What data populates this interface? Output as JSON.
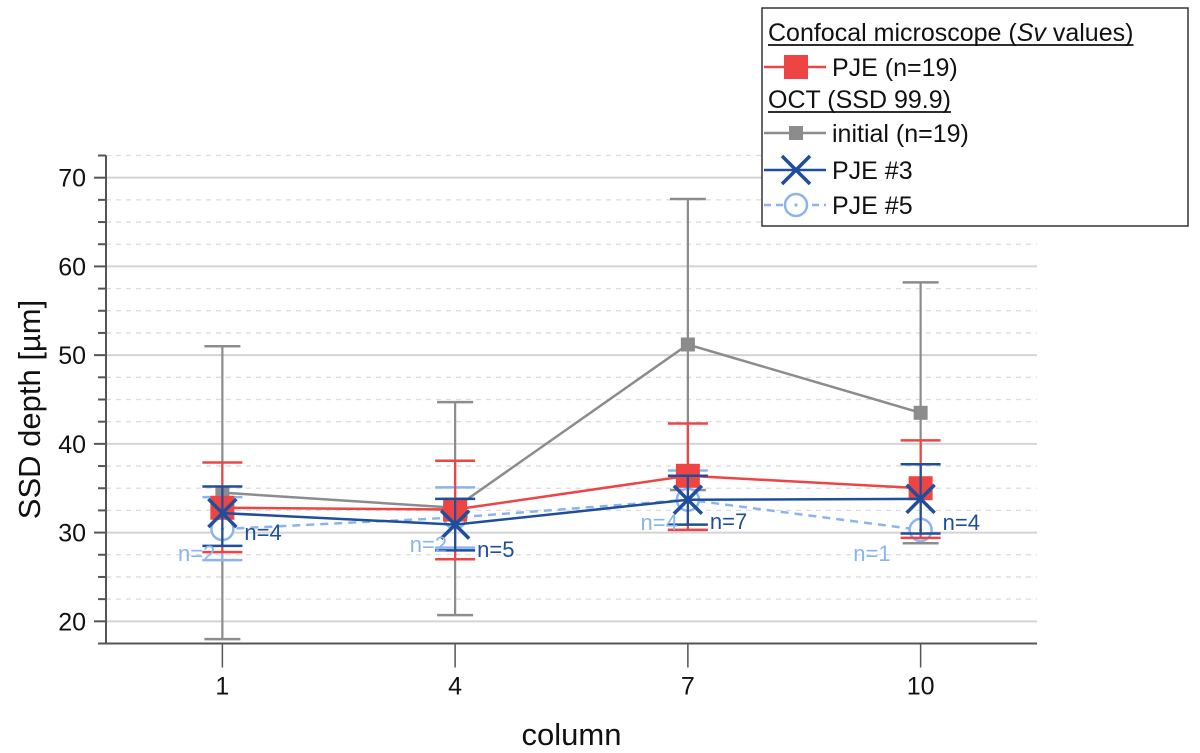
{
  "chart_data": {
    "type": "line",
    "title": "",
    "xlabel": "column",
    "ylabel": "SSD depth [µm]",
    "x": [
      1,
      4,
      7,
      10
    ],
    "x_tick_labels": [
      "1",
      "4",
      "7",
      "10"
    ],
    "xlim": [
      -0.5,
      11.5
    ],
    "ylim": [
      17.5,
      72.5
    ],
    "y_ticks": [
      20,
      30,
      40,
      50,
      60,
      70
    ],
    "y_tick_labels": [
      "20",
      "30",
      "40",
      "50",
      "60",
      "70"
    ],
    "y_minor_step": 2.5,
    "grid": "major solid, minor dashed (horizontal)",
    "legend_position": "top-right",
    "legend": [
      {
        "type": "header",
        "label_parts": [
          "Confocal microscope (",
          "Sv",
          " values)"
        ]
      },
      {
        "type": "series",
        "series_index": 0,
        "label": "PJE (n=19)"
      },
      {
        "type": "header",
        "label_parts": [
          "OCT (SSD 99.9)",
          "",
          ""
        ]
      },
      {
        "type": "series",
        "series_index": 1,
        "label": "initial (n=19)"
      },
      {
        "type": "series",
        "series_index": 2,
        "label": "PJE #3"
      },
      {
        "type": "series",
        "series_index": 3,
        "label": "PJE #5"
      }
    ],
    "series": [
      {
        "name": "PJE (n=19)",
        "group": "Confocal microscope (Sv values)",
        "color": "#EF4444",
        "marker": "square-large",
        "line": "solid",
        "values": [
          32.8,
          32.6,
          36.4,
          35.0
        ],
        "err_upper": [
          37.9,
          38.1,
          42.3,
          40.4
        ],
        "err_lower": [
          27.8,
          27.0,
          30.3,
          29.4
        ],
        "n_labels": []
      },
      {
        "name": "initial (n=19)",
        "group": "OCT (SSD 99.9)",
        "color": "#8C8C8C",
        "marker": "square-small",
        "line": "solid",
        "values": [
          34.5,
          32.8,
          51.2,
          43.5
        ],
        "err_upper": [
          51.0,
          44.7,
          67.6,
          58.2
        ],
        "err_lower": [
          18.0,
          20.7,
          34.8,
          28.8
        ],
        "n_labels": []
      },
      {
        "name": "PJE #3",
        "group": "OCT (SSD 99.9)",
        "color": "#1F4E9A",
        "marker": "x",
        "line": "solid",
        "values": [
          32.2,
          30.9,
          33.7,
          33.8
        ],
        "err_upper": [
          35.2,
          33.8,
          36.4,
          37.7
        ],
        "err_lower": [
          28.5,
          28.0,
          30.9,
          29.9
        ],
        "n_labels": [
          "n=4",
          "n=5",
          "n=7",
          "n=4"
        ]
      },
      {
        "name": "PJE #5",
        "group": "OCT (SSD 99.9)",
        "color": "#8AB4F0",
        "marker": "circle-dot",
        "line": "dashed",
        "values": [
          30.4,
          31.7,
          33.7,
          30.3
        ],
        "err_upper": [
          34.0,
          35.1,
          37.0,
          null
        ],
        "err_lower": [
          26.9,
          28.3,
          30.3,
          null
        ],
        "n_labels": [
          "n=2",
          "n=2",
          "n=4",
          "n=1"
        ]
      }
    ]
  }
}
